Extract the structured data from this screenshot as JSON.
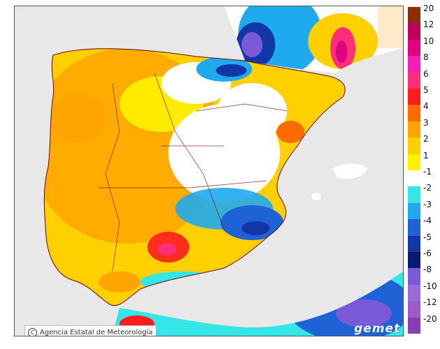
{
  "legend": {
    "labels": [
      "20",
      "12",
      "10",
      "8",
      "6",
      "5",
      "4",
      "3",
      "2",
      "1",
      "-1",
      "-2",
      "-3",
      "-4",
      "-5",
      "-6",
      "-8",
      "-10",
      "-12",
      "-20"
    ],
    "colors": [
      "#8b2f00",
      "#c0005a",
      "#de0080",
      "#f51fb3",
      "#ff2e7a",
      "#ff1c1c",
      "#ff6a00",
      "#ffa400",
      "#ffd000",
      "#fff200",
      "#ffffff",
      "#35e6e6",
      "#1faaf0",
      "#1e62d6",
      "#1236a6",
      "#0a1a70",
      "#7a5ad8",
      "#9a6ad8",
      "#9c5cc8",
      "#8a3cb8"
    ],
    "white_slot_index": 10
  },
  "credit": "Agencia Estatal de Meteorología",
  "credit_icon": "C",
  "brand": "gemet",
  "map": {
    "sea_color": "#e8e8e8",
    "land_outline_color": "#6e0000"
  }
}
